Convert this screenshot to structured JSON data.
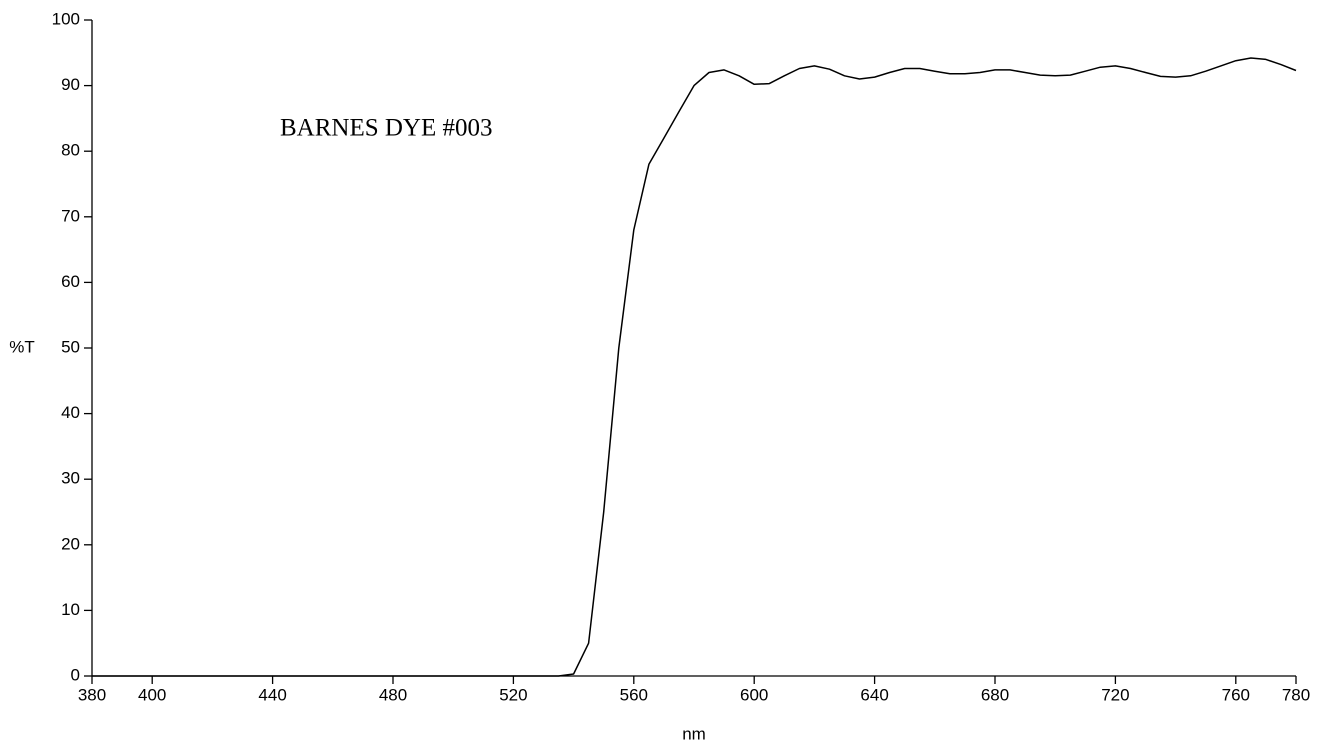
{
  "chart_data": {
    "type": "line",
    "annotation": "BARNES DYE #003",
    "x_label": "nm",
    "y_label": "%T",
    "x": [
      380,
      400,
      420,
      440,
      460,
      480,
      500,
      520,
      535,
      540,
      545,
      550,
      555,
      560,
      565,
      570,
      575,
      580,
      585,
      590,
      595,
      600,
      605,
      610,
      615,
      620,
      625,
      630,
      635,
      640,
      645,
      650,
      655,
      660,
      665,
      670,
      675,
      680,
      685,
      690,
      695,
      700,
      705,
      710,
      715,
      720,
      725,
      730,
      735,
      740,
      745,
      750,
      755,
      760,
      765,
      770,
      775,
      780
    ],
    "values": [
      0,
      0,
      0,
      0,
      0,
      0,
      0,
      0,
      0,
      0.3,
      5,
      25,
      50,
      68,
      78,
      82,
      86,
      90,
      92,
      92.4,
      91.5,
      90.2,
      90.3,
      91.5,
      92.6,
      93,
      92.5,
      91.5,
      91,
      91.3,
      92,
      92.6,
      92.6,
      92.2,
      91.8,
      91.8,
      92,
      92.4,
      92.4,
      92,
      91.6,
      91.5,
      91.6,
      92.2,
      92.8,
      93,
      92.6,
      92,
      91.4,
      91.3,
      91.5,
      92.2,
      93,
      93.8,
      94.2,
      94,
      93.2,
      92.3
    ],
    "color": "#000000",
    "xlim": [
      380,
      780
    ],
    "ylim": [
      0,
      100
    ],
    "xticks": [
      380,
      400,
      440,
      480,
      520,
      560,
      600,
      640,
      680,
      720,
      760,
      780
    ],
    "yticks": [
      0,
      10,
      20,
      30,
      40,
      50,
      60,
      70,
      80,
      90,
      100
    ]
  }
}
